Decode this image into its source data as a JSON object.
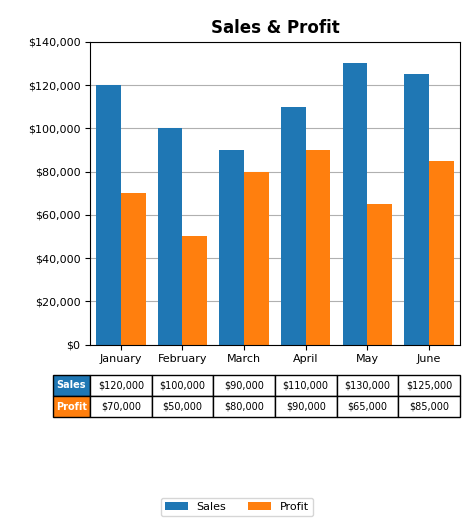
{
  "chart_data": {
    "type": "bar",
    "title": "Sales & Profit",
    "categories": [
      "January",
      "February",
      "March",
      "April",
      "May",
      "June"
    ],
    "series": [
      {
        "name": "Sales",
        "values": [
          120000,
          100000,
          90000,
          110000,
          130000,
          125000
        ],
        "value_labels": [
          "$120,000",
          "$100,000",
          "$90,000",
          "$110,000",
          "$130,000",
          "$125,000"
        ]
      },
      {
        "name": "Profit",
        "values": [
          70000,
          50000,
          80000,
          90000,
          65000,
          85000
        ],
        "value_labels": [
          "$70,000",
          "$50,000",
          "$80,000",
          "$90,000",
          "$65,000",
          "$85,000"
        ]
      }
    ],
    "ylim": [
      0,
      140000
    ],
    "yticks": [
      {
        "value": 0,
        "label": "$0"
      },
      {
        "value": 20000,
        "label": "$20,000"
      },
      {
        "value": 40000,
        "label": "$40,000"
      },
      {
        "value": 60000,
        "label": "$60,000"
      },
      {
        "value": 80000,
        "label": "$80,000"
      },
      {
        "value": 100000,
        "label": "$100,000"
      },
      {
        "value": 120000,
        "label": "$120,000"
      },
      {
        "value": 140000,
        "label": "$140,000"
      }
    ],
    "grid": true,
    "legend": "bottom"
  }
}
